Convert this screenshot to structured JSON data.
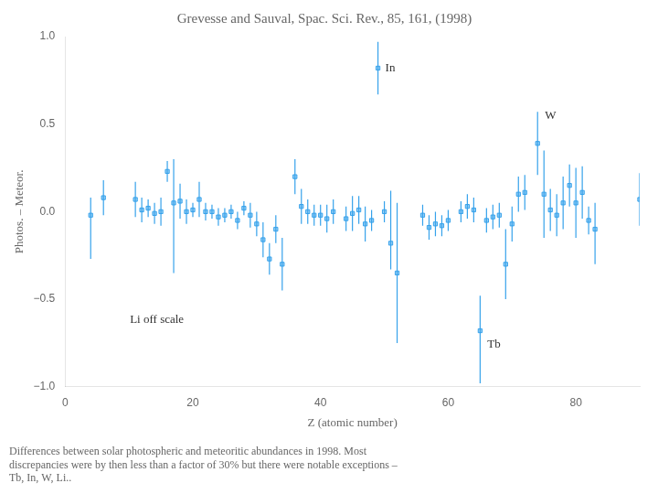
{
  "chart_data": {
    "type": "scatter",
    "title": "Grevesse and Sauval, Spac. Sci. Rev., 85, 161, (1998)",
    "xlabel": "Z (atomic number)",
    "ylabel": "Photos. – Meteor.",
    "caption": "Differences between solar photospheric and meteoritic abundances in 1998. Most\ndiscrepancies were by then less than a factor of 30% but there were notable exceptions –\nTb, In, W, Li..",
    "xlim": [
      0,
      90
    ],
    "ylim": [
      -1.0,
      1.0
    ],
    "xticks": [
      0,
      20,
      40,
      60,
      80
    ],
    "yticks": [
      {
        "value": -1.0,
        "label": "−1.0"
      },
      {
        "value": -0.5,
        "label": "−0.5"
      },
      {
        "value": 0.0,
        "label": "0.0"
      },
      {
        "value": 0.5,
        "label": "0.5"
      },
      {
        "value": 1.0,
        "label": "1.0"
      }
    ],
    "grid": false,
    "marker": "square",
    "x": [
      4,
      6,
      11,
      12,
      13,
      14,
      15,
      16,
      17,
      18,
      19,
      20,
      21,
      22,
      23,
      24,
      25,
      26,
      27,
      28,
      29,
      30,
      31,
      32,
      33,
      34,
      36,
      37,
      38,
      39,
      40,
      41,
      42,
      44,
      45,
      46,
      47,
      48,
      49,
      50,
      51,
      52,
      56,
      57,
      58,
      59,
      60,
      62,
      63,
      64,
      65,
      66,
      67,
      68,
      69,
      70,
      71,
      72,
      74,
      75,
      76,
      77,
      78,
      79,
      80,
      81,
      82,
      83,
      90
    ],
    "values": [
      -0.02,
      0.08,
      0.07,
      0.01,
      0.02,
      -0.01,
      0.0,
      0.23,
      0.05,
      0.06,
      0.0,
      0.01,
      0.07,
      0.0,
      0.0,
      -0.03,
      -0.02,
      0.0,
      -0.05,
      0.02,
      -0.02,
      -0.07,
      -0.16,
      -0.27,
      -0.1,
      -0.3,
      0.2,
      0.03,
      0.0,
      -0.02,
      -0.02,
      -0.04,
      -0.0,
      -0.04,
      -0.01,
      0.01,
      -0.07,
      -0.05,
      0.82,
      0.0,
      -0.18,
      -0.35,
      -0.02,
      -0.09,
      -0.07,
      -0.08,
      -0.05,
      0.0,
      0.03,
      0.01,
      -0.68,
      -0.05,
      -0.03,
      -0.02,
      -0.3,
      -0.07,
      0.1,
      0.11,
      0.39,
      0.1,
      0.01,
      -0.02,
      0.05,
      0.15,
      0.05,
      0.11,
      -0.05,
      -0.1,
      0.07
    ],
    "err_lo": [
      0.25,
      0.1,
      0.1,
      0.07,
      0.05,
      0.06,
      0.08,
      0.06,
      0.4,
      0.1,
      0.07,
      0.04,
      0.1,
      0.05,
      0.04,
      0.05,
      0.04,
      0.04,
      0.05,
      0.04,
      0.07,
      0.07,
      0.1,
      0.09,
      0.08,
      0.15,
      0.1,
      0.1,
      0.07,
      0.06,
      0.06,
      0.08,
      0.07,
      0.07,
      0.1,
      0.08,
      0.1,
      0.06,
      0.15,
      0.06,
      0.15,
      0.4,
      0.06,
      0.07,
      0.07,
      0.06,
      0.06,
      0.06,
      0.07,
      0.07,
      0.3,
      0.07,
      0.07,
      0.07,
      0.2,
      0.1,
      0.1,
      0.1,
      0.18,
      0.25,
      0.12,
      0.12,
      0.15,
      0.12,
      0.2,
      0.15,
      0.08,
      0.2,
      0.15
    ],
    "err_hi": [
      0.1,
      0.1,
      0.1,
      0.07,
      0.05,
      0.06,
      0.08,
      0.06,
      0.25,
      0.1,
      0.07,
      0.04,
      0.1,
      0.05,
      0.04,
      0.05,
      0.04,
      0.04,
      0.05,
      0.04,
      0.07,
      0.07,
      0.1,
      0.09,
      0.08,
      0.15,
      0.1,
      0.1,
      0.07,
      0.06,
      0.06,
      0.08,
      0.07,
      0.07,
      0.1,
      0.08,
      0.1,
      0.06,
      0.15,
      0.06,
      0.3,
      0.4,
      0.06,
      0.07,
      0.07,
      0.06,
      0.06,
      0.06,
      0.07,
      0.07,
      0.2,
      0.07,
      0.07,
      0.07,
      0.2,
      0.1,
      0.1,
      0.1,
      0.18,
      0.25,
      0.12,
      0.12,
      0.15,
      0.12,
      0.2,
      0.15,
      0.08,
      0.15,
      0.15
    ],
    "annotations": [
      {
        "text": "In",
        "x": 49,
        "y": 0.82
      },
      {
        "text": "W",
        "x": 74,
        "y": 0.55
      },
      {
        "text": "Tb",
        "x": 65,
        "y": -0.76
      },
      {
        "text": "Li off scale",
        "x": 9,
        "y": -0.62
      }
    ]
  }
}
